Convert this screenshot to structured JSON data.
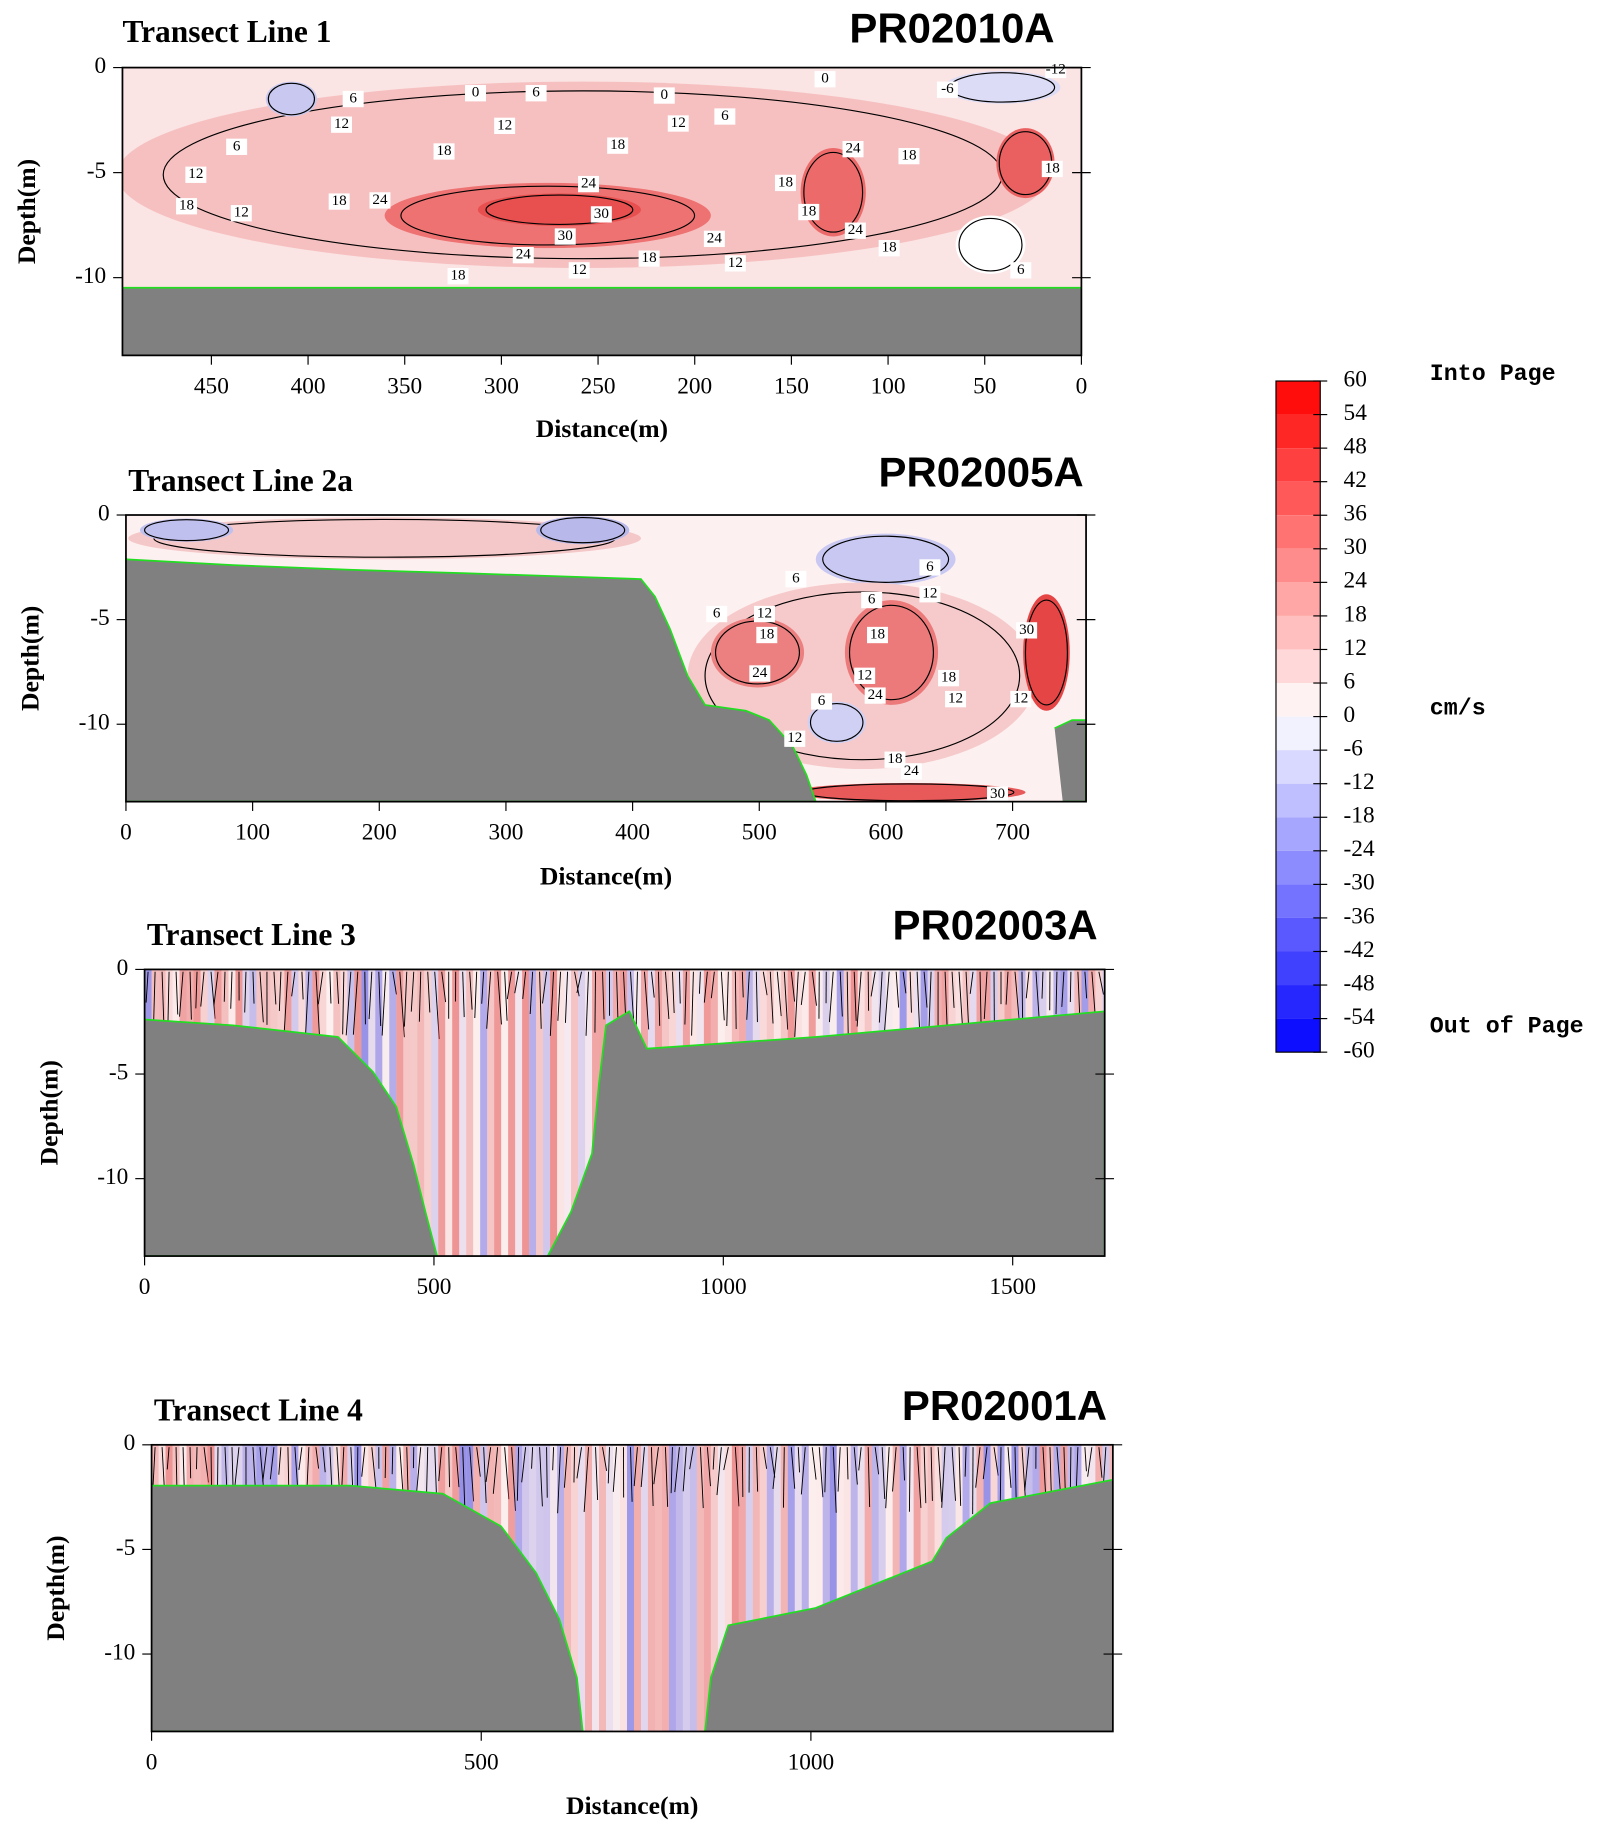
{
  "panels": [
    {
      "title": "Transect Line 1",
      "code": "PR02010A",
      "xlabel": "Distance(m)",
      "ylabel": "Depth(m)",
      "xlim": [
        496,
        0
      ],
      "ylim": [
        -13.7,
        0
      ],
      "xticks": [
        450,
        400,
        350,
        300,
        250,
        200,
        150,
        100,
        50,
        0
      ],
      "yticks": [
        0,
        -5,
        -10
      ],
      "contour_labels": [
        0,
        6,
        0,
        6,
        0,
        -6,
        -12,
        12,
        6,
        6,
        12,
        18,
        12,
        18,
        12,
        18,
        12,
        24,
        18,
        30,
        30,
        24,
        24,
        18,
        12,
        18,
        12,
        18,
        24,
        24,
        18,
        18,
        24,
        18,
        18,
        6
      ]
    },
    {
      "title": "Transect Line 2a",
      "code": "PR02005A",
      "xlabel": "Distance(m)",
      "ylabel": "Depth(m)",
      "xlim": [
        0,
        758
      ],
      "ylim": [
        -13.7,
        0
      ],
      "xticks": [
        0,
        100,
        200,
        300,
        400,
        500,
        600,
        700
      ],
      "yticks": [
        0,
        -5,
        -10
      ],
      "contour_labels": [
        12,
        18,
        24,
        6,
        6,
        18,
        12,
        24,
        18,
        12,
        30,
        6,
        6,
        12,
        6,
        12,
        18,
        24,
        30,
        12
      ]
    },
    {
      "title": "Transect Line 3",
      "code": "PR02003A",
      "ylabel": "Depth(m)",
      "xlim": [
        0,
        1659
      ],
      "ylim": [
        -13.7,
        0
      ],
      "xticks": [
        0,
        500,
        1000,
        1500
      ],
      "yticks": [
        0,
        -5,
        -10
      ]
    },
    {
      "title": "Transect Line 4",
      "code": "PR02001A",
      "xlabel": "Distance(m)",
      "ylabel": "Depth(m)",
      "xlim": [
        0,
        1458
      ],
      "ylim": [
        -13.7,
        0
      ],
      "xticks": [
        0,
        500,
        1000
      ],
      "yticks": [
        0,
        -5,
        -10
      ]
    }
  ],
  "colorbar": {
    "ticks": [
      60,
      54,
      48,
      42,
      36,
      30,
      24,
      18,
      12,
      6,
      0,
      -6,
      -12,
      -18,
      -24,
      -30,
      -36,
      -42,
      -48,
      -54,
      -60
    ],
    "unit": "cm/s",
    "top_label": "Into Page",
    "bottom_label": "Out of Page",
    "max_color": "#ff0000",
    "mid_color": "#ffffff",
    "min_color": "#0000ff"
  }
}
